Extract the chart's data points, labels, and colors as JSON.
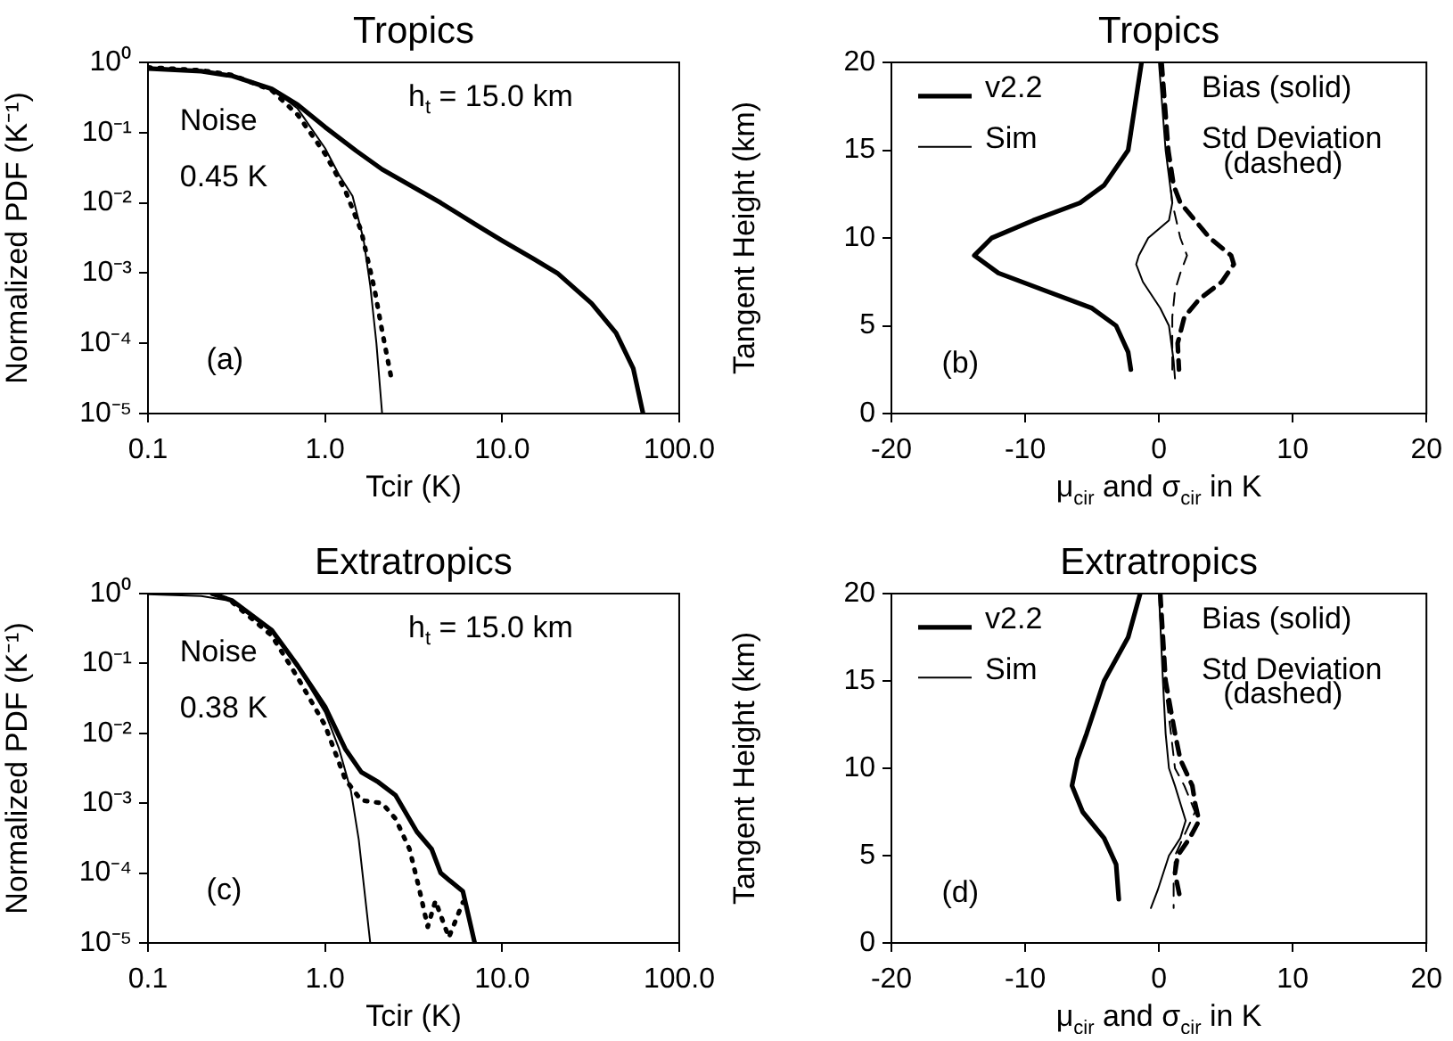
{
  "chart_data": [
    {
      "type": "line",
      "title": "Tropics",
      "xlabel": "Tcir (K)",
      "ylabel": "Normalized PDF (K⁻¹)",
      "log": "xy",
      "grid": false,
      "marker": "none",
      "xlim": [
        0.1,
        100
      ],
      "xticks": [
        {
          "value": 0.1,
          "label": "0.1"
        },
        {
          "value": 1,
          "label": "1.0"
        },
        {
          "value": 10,
          "label": "10.0"
        },
        {
          "value": 100,
          "label": "100.0"
        }
      ],
      "ylim": [
        1e-05,
        1
      ],
      "yticks": [
        {
          "value": 1,
          "label": "10⁰"
        },
        {
          "value": 0.1,
          "label": "10⁻¹"
        },
        {
          "value": 0.01,
          "label": "10⁻²"
        },
        {
          "value": 0.001,
          "label": "10⁻³"
        },
        {
          "value": 0.0001,
          "label": "10⁻⁴"
        },
        {
          "value": 1e-05,
          "label": "10⁻⁵"
        }
      ],
      "annotations": [
        "h$_{t}$ = 15.0 km",
        "Noise",
        "0.45 K",
        "(a)"
      ],
      "series": [
        {
          "color": "#000000",
          "line_style": "solid",
          "x": [
            0.1,
            0.2,
            0.3,
            0.5,
            0.7,
            1.0,
            1.5,
            2.1,
            3,
            4.5,
            7,
            10,
            15,
            20.5,
            32,
            44,
            55,
            62.5
          ],
          "values": [
            0.82,
            0.75,
            0.64,
            0.42,
            0.25,
            0.12,
            0.055,
            0.03,
            0.018,
            0.01,
            0.005,
            0.0029,
            0.0016,
            0.001,
            0.00037,
            0.00014,
            4.4e-05,
            1e-05
          ]
        },
        {
          "color": "#000000",
          "line_style": "solid",
          "x": [
            0.1,
            0.2,
            0.3,
            0.5,
            0.7,
            1.0,
            1.2,
            1.43,
            1.65,
            1.8,
            1.95,
            2.1
          ],
          "values": [
            0.82,
            0.75,
            0.64,
            0.42,
            0.22,
            0.06,
            0.025,
            0.0125,
            0.003,
            0.00066,
            0.0001,
            1e-05
          ]
        },
        {
          "color": "#000000",
          "line_style": "dotted",
          "x": [
            0.1,
            0.2,
            0.3,
            0.5,
            0.7,
            1.0,
            1.3,
            1.6,
            1.9,
            2.1,
            2.35
          ],
          "values": [
            0.85,
            0.77,
            0.66,
            0.4,
            0.18,
            0.05,
            0.015,
            0.004,
            0.0006,
            0.00015,
            3.5e-05
          ]
        }
      ]
    },
    {
      "type": "line",
      "title": "Tropics",
      "xlabel": "μ$_{cir}$ and σ$_{cir}$ in K",
      "ylabel": "Tangent Height (km)",
      "grid": false,
      "marker": "none",
      "legend": "top left",
      "xlim": [
        -20,
        20
      ],
      "xticks": [
        -20,
        -10,
        0,
        10,
        20
      ],
      "ylim": [
        0,
        20
      ],
      "yticks": [
        0,
        5,
        10,
        15,
        20
      ],
      "annotations": [
        "Bias (solid)",
        "Std Deviation",
        "(dashed)",
        "(b)"
      ],
      "series": [
        {
          "name": "v2.2",
          "color": "#000000",
          "line_style": "solid",
          "x": [
            -1.3,
            -2.3,
            -4.1,
            -5.9,
            -9.4,
            -12.5,
            -13.8,
            -12,
            -8.5,
            -5,
            -3.2,
            -2.3,
            -2.1
          ],
          "values": [
            20,
            15,
            13,
            12,
            11,
            10,
            9,
            8,
            7,
            6,
            5,
            3.5,
            2.5
          ]
        },
        {
          "name": "Sim",
          "color": "#000000",
          "line_style": "solid",
          "x": [
            0,
            0.5,
            1.0,
            0.75,
            -0.8,
            -1.5,
            -1.7,
            -1.2,
            0.1,
            0.75,
            1.1,
            1.2
          ],
          "values": [
            20,
            15,
            12,
            11,
            10,
            9,
            8.5,
            7.5,
            6,
            5,
            3,
            2
          ]
        },
        {
          "color": "#000000",
          "line_style": "dashed",
          "x": [
            0.2,
            0.7,
            1.1,
            1.6,
            3.8,
            5.4,
            5.6,
            4.7,
            3.0,
            1.9,
            1.4,
            1.5
          ],
          "values": [
            20,
            15,
            13,
            12,
            10,
            9,
            8.5,
            7.5,
            6.5,
            5.5,
            4,
            2.5
          ]
        },
        {
          "color": "#000000",
          "line_style": "dashed",
          "x": [
            0.2,
            0.6,
            1.0,
            1.6,
            2.1,
            1.6,
            1.2,
            1.0,
            1.0,
            1.0
          ],
          "values": [
            20,
            15,
            12,
            10,
            9,
            8,
            7,
            5.5,
            3,
            2
          ]
        }
      ]
    },
    {
      "type": "line",
      "title": "Extratropics",
      "xlabel": "Tcir (K)",
      "ylabel": "Normalized PDF (K⁻¹)",
      "log": "xy",
      "grid": false,
      "marker": "none",
      "xlim": [
        0.1,
        100
      ],
      "xticks": [
        {
          "value": 0.1,
          "label": "0.1"
        },
        {
          "value": 1,
          "label": "1.0"
        },
        {
          "value": 10,
          "label": "10.0"
        },
        {
          "value": 100,
          "label": "100.0"
        }
      ],
      "ylim": [
        1e-05,
        1
      ],
      "yticks": [
        {
          "value": 1,
          "label": "10⁰"
        },
        {
          "value": 0.1,
          "label": "10⁻¹"
        },
        {
          "value": 0.01,
          "label": "10⁻²"
        },
        {
          "value": 0.001,
          "label": "10⁻³"
        },
        {
          "value": 0.0001,
          "label": "10⁻⁴"
        },
        {
          "value": 1e-05,
          "label": "10⁻⁵"
        }
      ],
      "annotations": [
        "h$_{t}$ = 15.0 km",
        "Noise",
        "0.38 K",
        "(c)"
      ],
      "series": [
        {
          "color": "#000000",
          "line_style": "solid",
          "x": [
            0.23,
            0.3,
            0.5,
            0.7,
            1.0,
            1.3,
            1.6,
            2.0,
            2.5,
            3.3,
            4.0,
            4.5,
            5,
            6,
            7
          ],
          "values": [
            1.0,
            0.79,
            0.3,
            0.093,
            0.024,
            0.006,
            0.0028,
            0.002,
            0.0013,
            0.00039,
            0.00022,
            0.0001,
            8e-05,
            5.5e-05,
            1e-05
          ]
        },
        {
          "color": "#000000",
          "line_style": "solid",
          "x": [
            0.1,
            0.2,
            0.3,
            0.5,
            0.7,
            1.0,
            1.2,
            1.4,
            1.55,
            1.8
          ],
          "values": [
            0.98,
            0.92,
            0.78,
            0.3,
            0.09,
            0.02,
            0.006,
            0.0015,
            0.0003,
            1e-05
          ]
        },
        {
          "color": "#000000",
          "line_style": "dotted",
          "x": [
            0.3,
            0.5,
            0.7,
            1.0,
            1.3,
            1.6,
            2.1,
            2.5,
            3.0,
            3.4,
            3.8,
            4.2,
            5.0,
            6.0
          ],
          "values": [
            0.75,
            0.25,
            0.063,
            0.013,
            0.0022,
            0.0011,
            0.001,
            0.0006,
            0.00022,
            6e-05,
            1.7e-05,
            4e-05,
            1.2e-05,
            3.8e-05
          ]
        }
      ]
    },
    {
      "type": "line",
      "title": "Extratropics",
      "xlabel": "μ$_{cir}$ and σ$_{cir}$ in K",
      "ylabel": "Tangent Height (km)",
      "grid": false,
      "marker": "none",
      "legend": "top left",
      "xlim": [
        -20,
        20
      ],
      "xticks": [
        -20,
        -10,
        0,
        10,
        20
      ],
      "ylim": [
        0,
        20
      ],
      "yticks": [
        0,
        5,
        10,
        15,
        20
      ],
      "annotations": [
        "Bias (solid)",
        "Std Deviation",
        "(dashed)",
        "(d)"
      ],
      "series": [
        {
          "name": "v2.2",
          "color": "#000000",
          "line_style": "solid",
          "x": [
            -1.4,
            -2.3,
            -4.1,
            -5.4,
            -6.1,
            -6.5,
            -5.7,
            -4.1,
            -3.2,
            -3.0
          ],
          "values": [
            20,
            17.5,
            15,
            12,
            10.5,
            9,
            7.5,
            6,
            4.5,
            2.5
          ]
        },
        {
          "name": "Sim",
          "color": "#000000",
          "line_style": "solid",
          "x": [
            0,
            0.3,
            0.5,
            0.75,
            1.2,
            1.6,
            2.0,
            1.6,
            0.75,
            -0.1,
            -0.6
          ],
          "values": [
            20,
            15,
            12,
            10,
            9,
            8,
            7,
            6,
            5,
            3,
            2
          ]
        },
        {
          "color": "#000000",
          "line_style": "dashed",
          "x": [
            0.1,
            0.5,
            1.2,
            1.6,
            2.5,
            2.7,
            3.0,
            2.3,
            1.4,
            1.2,
            1.6
          ],
          "values": [
            20,
            15,
            12,
            10.5,
            9,
            8,
            7,
            6,
            5,
            4,
            2.5
          ]
        },
        {
          "color": "#000000",
          "line_style": "dashed",
          "x": [
            0.1,
            0.4,
            0.9,
            1.2,
            1.9,
            2.7,
            2.1,
            1.2,
            1.1,
            1.1
          ],
          "values": [
            20,
            15,
            12,
            10,
            9,
            7.5,
            6.5,
            5,
            3.5,
            2
          ]
        }
      ]
    }
  ]
}
